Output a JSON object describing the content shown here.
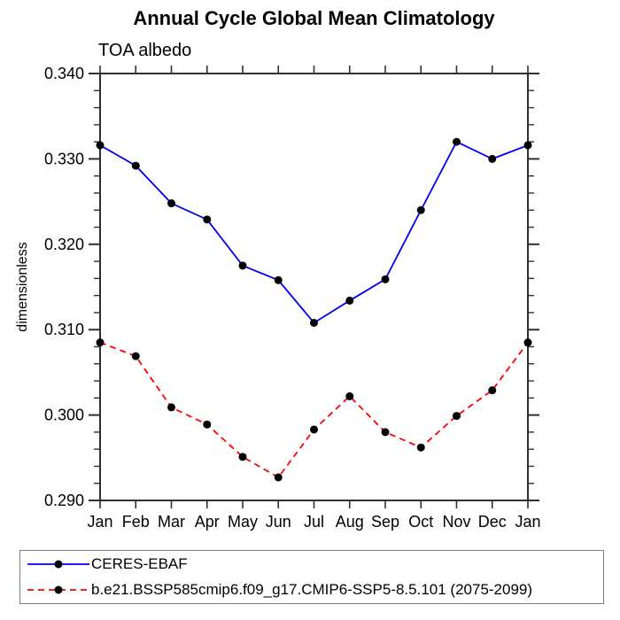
{
  "title": "Annual Cycle Global Mean Climatology",
  "subtitle": "TOA albedo",
  "chart_data": {
    "type": "line",
    "categories": [
      "Jan",
      "Feb",
      "Mar",
      "Apr",
      "May",
      "Jun",
      "Jul",
      "Aug",
      "Sep",
      "Oct",
      "Nov",
      "Dec",
      "Jan"
    ],
    "series": [
      {
        "name": "CERES-EBAF",
        "color": "#0000ee",
        "line_style": "solid",
        "marker": "filled-circle",
        "marker_color": "#000000",
        "values": [
          0.3316,
          0.3292,
          0.3248,
          0.3229,
          0.3175,
          0.3158,
          0.3108,
          0.3134,
          0.3159,
          0.324,
          0.332,
          0.33,
          0.3316
        ]
      },
      {
        "name": "b.e21.BSSP585cmip6.f09_g17.CMIP6-SSP5-8.5.101 (2075-2099)",
        "color": "#ff0000",
        "line_style": "dashed",
        "marker": "filled-circle",
        "marker_color": "#000000",
        "values": [
          0.3085,
          0.3069,
          0.3009,
          0.2989,
          0.2951,
          0.2927,
          0.2983,
          0.3022,
          0.298,
          0.2962,
          0.2999,
          0.3029,
          0.3085
        ]
      }
    ],
    "title": "Annual Cycle Global Mean Climatology",
    "subtitle": "TOA albedo",
    "xlabel": "",
    "ylabel": "dimensionless",
    "ylim": [
      0.29,
      0.34
    ],
    "yticks": [
      0.29,
      0.3,
      0.31,
      0.32,
      0.33,
      0.34
    ],
    "ytick_format_decimals": 3,
    "minor_tick_interval": 0.002,
    "grid": false,
    "legend_position": "bottom-left",
    "axis_color": "#303030",
    "text_color": "#000000"
  }
}
